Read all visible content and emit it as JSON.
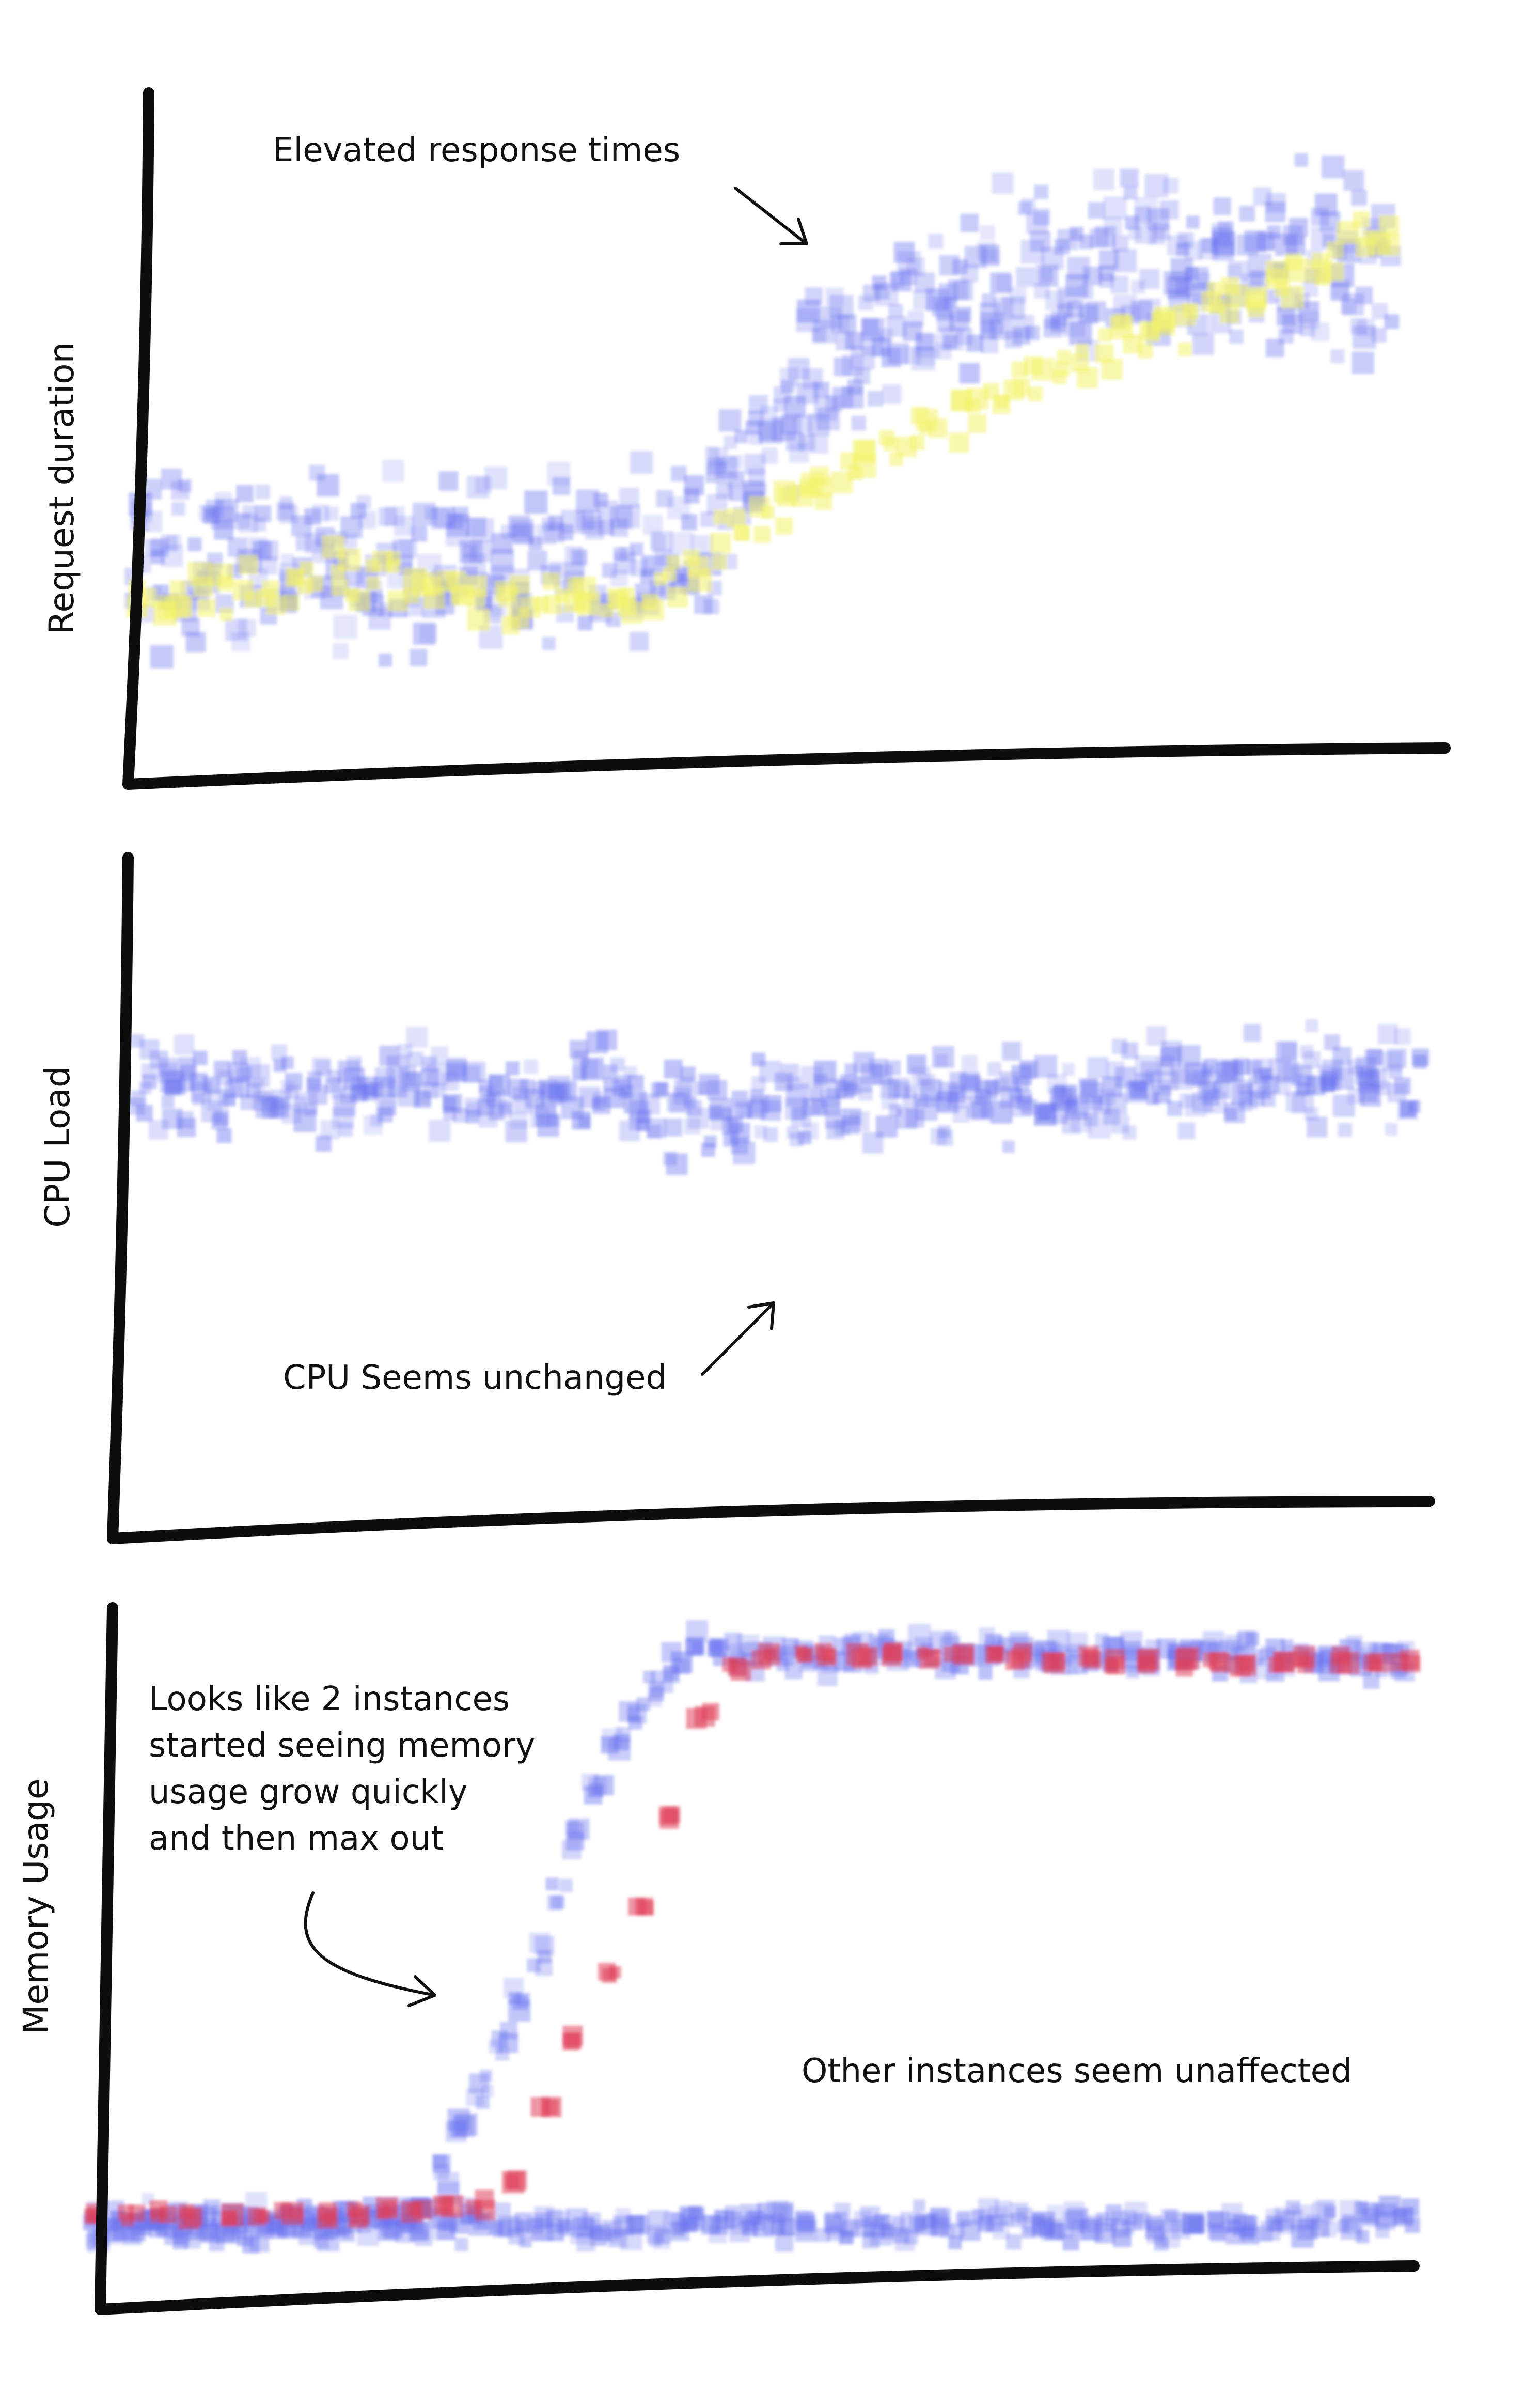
{
  "chart_data": [
    {
      "type": "scatter",
      "title": "",
      "xlabel": "",
      "ylabel": "Request duration",
      "grid": false,
      "annotations": [
        "Elevated response times"
      ],
      "series": [
        {
          "color": "#6b74f0",
          "values": [
            [
              0.0,
              0.28
            ],
            [
              0.05,
              0.29
            ],
            [
              0.1,
              0.28
            ],
            [
              0.15,
              0.3
            ],
            [
              0.2,
              0.28
            ],
            [
              0.25,
              0.29
            ],
            [
              0.3,
              0.27
            ],
            [
              0.35,
              0.28
            ],
            [
              0.4,
              0.29
            ],
            [
              0.45,
              0.34
            ],
            [
              0.5,
              0.45
            ],
            [
              0.55,
              0.58
            ],
            [
              0.6,
              0.66
            ],
            [
              0.65,
              0.69
            ],
            [
              0.7,
              0.71
            ],
            [
              0.75,
              0.73
            ],
            [
              0.8,
              0.75
            ],
            [
              0.85,
              0.72
            ],
            [
              0.9,
              0.74
            ],
            [
              0.95,
              0.73
            ],
            [
              1.0,
              0.72
            ]
          ]
        },
        {
          "color": "#f2f26a",
          "values": [
            [
              0.0,
              0.24
            ],
            [
              0.05,
              0.24
            ],
            [
              0.1,
              0.25
            ],
            [
              0.15,
              0.27
            ],
            [
              0.2,
              0.24
            ],
            [
              0.25,
              0.25
            ],
            [
              0.3,
              0.23
            ],
            [
              0.35,
              0.24
            ],
            [
              0.4,
              0.23
            ],
            [
              0.45,
              0.3
            ],
            [
              0.5,
              0.35
            ],
            [
              0.55,
              0.41
            ],
            [
              0.6,
              0.46
            ],
            [
              0.65,
              0.5
            ],
            [
              0.7,
              0.55
            ],
            [
              0.75,
              0.59
            ],
            [
              0.8,
              0.63
            ],
            [
              0.85,
              0.66
            ],
            [
              0.9,
              0.7
            ],
            [
              0.95,
              0.74
            ],
            [
              1.0,
              0.77
            ]
          ]
        }
      ]
    },
    {
      "type": "scatter",
      "title": "",
      "xlabel": "",
      "ylabel": "CPU Load",
      "grid": false,
      "annotations": [
        "CPU Seems unchanged"
      ],
      "series": [
        {
          "color": "#6b74f0",
          "values": [
            [
              0.0,
              0.66
            ],
            [
              0.05,
              0.64
            ],
            [
              0.1,
              0.65
            ],
            [
              0.15,
              0.63
            ],
            [
              0.2,
              0.65
            ],
            [
              0.25,
              0.64
            ],
            [
              0.3,
              0.63
            ],
            [
              0.35,
              0.65
            ],
            [
              0.4,
              0.62
            ],
            [
              0.45,
              0.6
            ],
            [
              0.5,
              0.63
            ],
            [
              0.55,
              0.62
            ],
            [
              0.6,
              0.64
            ],
            [
              0.65,
              0.63
            ],
            [
              0.7,
              0.65
            ],
            [
              0.75,
              0.64
            ],
            [
              0.8,
              0.66
            ],
            [
              0.85,
              0.65
            ],
            [
              0.9,
              0.67
            ],
            [
              0.95,
              0.66
            ],
            [
              1.0,
              0.66
            ]
          ]
        }
      ]
    },
    {
      "type": "scatter",
      "title": "",
      "xlabel": "",
      "ylabel": "Memory Usage",
      "grid": false,
      "annotations": [
        "Looks like 2 instances",
        "started seeing memory",
        "usage grow quickly",
        "and then max out",
        "Other instances seem unaffected"
      ],
      "series": [
        {
          "color": "#6b74f0",
          "values": [
            [
              0.0,
              0.08
            ],
            [
              0.1,
              0.08
            ],
            [
              0.2,
              0.09
            ],
            [
              0.3,
              0.09
            ],
            [
              0.4,
              0.08
            ],
            [
              0.5,
              0.09
            ],
            [
              0.6,
              0.08
            ],
            [
              0.7,
              0.09
            ],
            [
              0.8,
              0.08
            ],
            [
              0.9,
              0.09
            ],
            [
              1.0,
              0.09
            ]
          ]
        },
        {
          "color": "#6b74f0",
          "values": [
            [
              0.0,
              0.09
            ],
            [
              0.15,
              0.09
            ],
            [
              0.25,
              0.11
            ],
            [
              0.3,
              0.31
            ],
            [
              0.35,
              0.56
            ],
            [
              0.4,
              0.82
            ],
            [
              0.45,
              0.94
            ],
            [
              0.55,
              0.93
            ],
            [
              0.7,
              0.93
            ],
            [
              0.85,
              0.93
            ],
            [
              1.0,
              0.92
            ]
          ]
        },
        {
          "color": "#e0405a",
          "values": [
            [
              0.0,
              0.1
            ],
            [
              0.2,
              0.1
            ],
            [
              0.31,
              0.12
            ],
            [
              0.36,
              0.34
            ],
            [
              0.42,
              0.58
            ],
            [
              0.47,
              0.88
            ],
            [
              0.5,
              0.93
            ],
            [
              0.65,
              0.93
            ],
            [
              0.8,
              0.92
            ],
            [
              1.0,
              0.92
            ]
          ]
        }
      ]
    }
  ]
}
